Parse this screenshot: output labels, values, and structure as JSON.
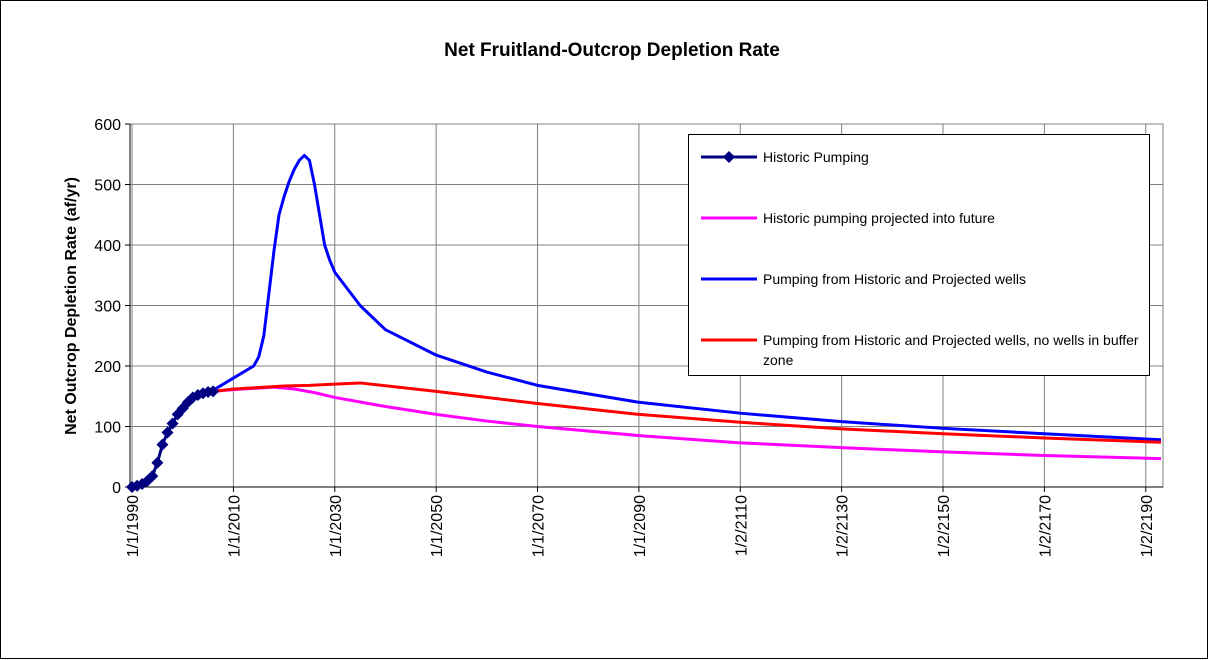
{
  "chart_data": {
    "type": "line",
    "title": "Net Fruitland-Outcrop Depletion Rate",
    "y_label": "Net Outcrop Depletion Rate (af/yr)",
    "xlim": [
      1989.6,
      2193.4
    ],
    "xticks": [
      {
        "value": 1990,
        "label": "1/1/1990"
      },
      {
        "value": 2010,
        "label": "1/1/2010"
      },
      {
        "value": 2030,
        "label": "1/1/2030"
      },
      {
        "value": 2050,
        "label": "1/1/2050"
      },
      {
        "value": 2070,
        "label": "1/1/2070"
      },
      {
        "value": 2090,
        "label": "1/1/2090"
      },
      {
        "value": 2110,
        "label": "1/2/2110"
      },
      {
        "value": 2130,
        "label": "1/2/2130"
      },
      {
        "value": 2150,
        "label": "1/2/2150"
      },
      {
        "value": 2170,
        "label": "1/2/2170"
      },
      {
        "value": 2190,
        "label": "1/2/2190"
      }
    ],
    "ylim": [
      0,
      600
    ],
    "yticks": [
      0,
      100,
      200,
      300,
      400,
      500,
      600
    ],
    "grid": true,
    "legend": "upper right",
    "series": [
      {
        "name": "Historic Pumping",
        "color": "#000080",
        "marker": "diamond",
        "x": [
          1990,
          1991,
          1992,
          1993,
          1994,
          1995,
          1996,
          1997,
          1998,
          1999,
          2000,
          2001,
          2002,
          2003,
          2004,
          2005,
          2006
        ],
        "values": [
          0,
          2,
          5,
          10,
          18,
          40,
          70,
          90,
          105,
          120,
          130,
          140,
          148,
          152,
          155,
          157,
          158
        ]
      },
      {
        "name": "Historic pumping projected into future",
        "color": "#ff00ff",
        "x": [
          2006,
          2010,
          2014,
          2018,
          2022,
          2026,
          2030,
          2040,
          2050,
          2060,
          2070,
          2090,
          2110,
          2130,
          2150,
          2170,
          2193
        ],
        "values": [
          158,
          161,
          163,
          165,
          162,
          156,
          148,
          133,
          120,
          109,
          100,
          85,
          73,
          65,
          58,
          52,
          47
        ]
      },
      {
        "name": "Pumping from Historic and Projected wells",
        "color": "#0000ff",
        "x": [
          2006,
          2010,
          2014,
          2015,
          2016,
          2017,
          2018,
          2019,
          2020,
          2021,
          2022,
          2023,
          2024,
          2025,
          2026,
          2027,
          2028,
          2029,
          2030,
          2035,
          2040,
          2050,
          2060,
          2070,
          2090,
          2110,
          2130,
          2150,
          2170,
          2193
        ],
        "values": [
          160,
          180,
          200,
          215,
          250,
          320,
          390,
          450,
          480,
          505,
          525,
          540,
          548,
          540,
          500,
          450,
          400,
          375,
          355,
          300,
          260,
          218,
          190,
          168,
          140,
          122,
          108,
          97,
          88,
          78
        ]
      },
      {
        "name": "Pumping from Historic and Projected wells, no wells in buffer zone",
        "color": "#ff0000",
        "x": [
          2006,
          2010,
          2020,
          2025,
          2030,
          2035,
          2050,
          2070,
          2090,
          2110,
          2130,
          2150,
          2170,
          2193
        ],
        "values": [
          158,
          162,
          167,
          168,
          170,
          172,
          158,
          138,
          120,
          107,
          96,
          88,
          81,
          74
        ]
      }
    ]
  }
}
